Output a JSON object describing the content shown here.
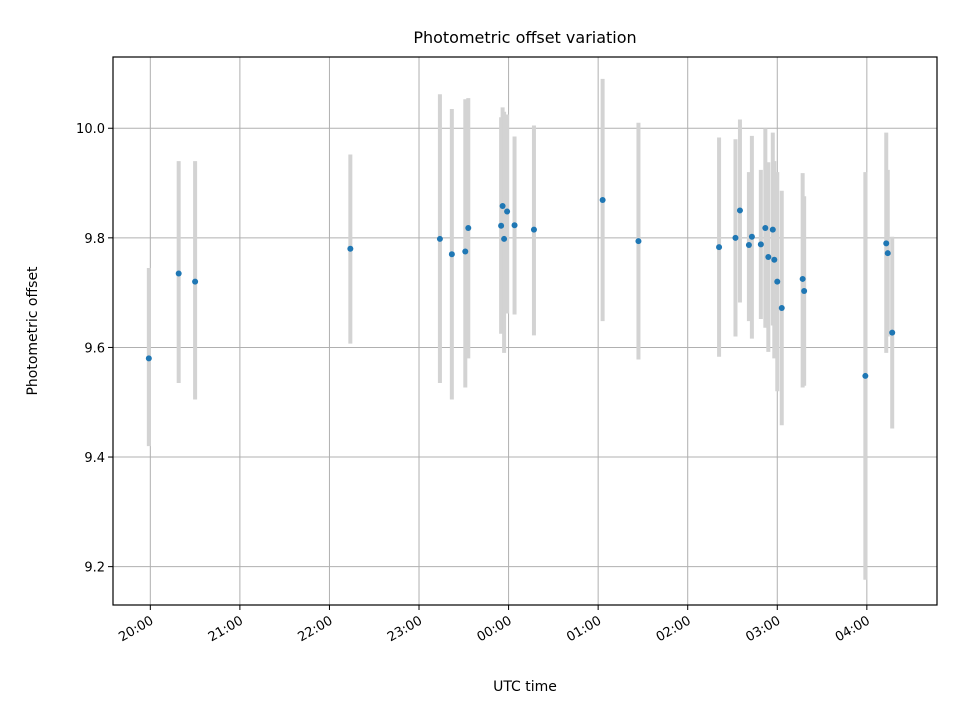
{
  "chart_data": {
    "type": "scatter",
    "title": "Photometric offset variation",
    "xlabel": "UTC time",
    "ylabel": "Photometric offset",
    "x_axis": "time",
    "x_range": [
      "19:35",
      "04:47"
    ],
    "ylim": [
      9.13,
      10.13
    ],
    "x_ticks": [
      "20:00",
      "21:00",
      "22:00",
      "23:00",
      "00:00",
      "01:00",
      "02:00",
      "03:00",
      "04:00"
    ],
    "y_ticks": [
      9.2,
      9.4,
      9.6,
      9.8,
      10.0
    ],
    "grid": true,
    "point_color": "#1f77b4",
    "errorbar_color": "#d3d3d3",
    "points": [
      {
        "x": "19:59",
        "y": 9.58,
        "lo": 9.42,
        "hi": 9.745
      },
      {
        "x": "20:19",
        "y": 9.735,
        "lo": 9.535,
        "hi": 9.94
      },
      {
        "x": "20:30",
        "y": 9.72,
        "lo": 9.505,
        "hi": 9.94
      },
      {
        "x": "22:14",
        "y": 9.78,
        "lo": 9.607,
        "hi": 9.952
      },
      {
        "x": "23:14",
        "y": 9.798,
        "lo": 9.535,
        "hi": 10.062
      },
      {
        "x": "23:22",
        "y": 9.77,
        "lo": 9.505,
        "hi": 10.035
      },
      {
        "x": "23:31",
        "y": 9.775,
        "lo": 9.527,
        "hi": 10.053
      },
      {
        "x": "23:33",
        "y": 9.818,
        "lo": 9.58,
        "hi": 10.055
      },
      {
        "x": "23:55",
        "y": 9.822,
        "lo": 9.625,
        "hi": 10.02
      },
      {
        "x": "23:56",
        "y": 9.858,
        "lo": 9.668,
        "hi": 10.038
      },
      {
        "x": "23:57",
        "y": 9.798,
        "lo": 9.59,
        "hi": 10.03
      },
      {
        "x": "23:59",
        "y": 9.848,
        "lo": 9.662,
        "hi": 10.025
      },
      {
        "x": "00:04",
        "y": 9.823,
        "lo": 9.66,
        "hi": 9.985
      },
      {
        "x": "00:17",
        "y": 9.815,
        "lo": 9.622,
        "hi": 10.005
      },
      {
        "x": "01:03",
        "y": 9.869,
        "lo": 9.648,
        "hi": 10.09
      },
      {
        "x": "01:27",
        "y": 9.794,
        "lo": 9.578,
        "hi": 10.01
      },
      {
        "x": "02:21",
        "y": 9.783,
        "lo": 9.583,
        "hi": 9.983
      },
      {
        "x": "02:32",
        "y": 9.8,
        "lo": 9.62,
        "hi": 9.98
      },
      {
        "x": "02:35",
        "y": 9.85,
        "lo": 9.682,
        "hi": 10.016
      },
      {
        "x": "02:41",
        "y": 9.787,
        "lo": 9.648,
        "hi": 9.92
      },
      {
        "x": "02:43",
        "y": 9.802,
        "lo": 9.616,
        "hi": 9.986
      },
      {
        "x": "02:49",
        "y": 9.788,
        "lo": 9.652,
        "hi": 9.924
      },
      {
        "x": "02:52",
        "y": 9.818,
        "lo": 9.636,
        "hi": 10.0
      },
      {
        "x": "02:54",
        "y": 9.765,
        "lo": 9.592,
        "hi": 9.938
      },
      {
        "x": "02:57",
        "y": 9.815,
        "lo": 9.64,
        "hi": 9.992
      },
      {
        "x": "02:58",
        "y": 9.76,
        "lo": 9.58,
        "hi": 9.94
      },
      {
        "x": "03:00",
        "y": 9.72,
        "lo": 9.52,
        "hi": 9.92
      },
      {
        "x": "03:03",
        "y": 9.672,
        "lo": 9.458,
        "hi": 9.886
      },
      {
        "x": "03:17",
        "y": 9.725,
        "lo": 9.527,
        "hi": 9.918
      },
      {
        "x": "03:18",
        "y": 9.703,
        "lo": 9.53,
        "hi": 9.876
      },
      {
        "x": "03:59",
        "y": 9.548,
        "lo": 9.176,
        "hi": 9.92
      },
      {
        "x": "04:13",
        "y": 9.79,
        "lo": 9.59,
        "hi": 9.992
      },
      {
        "x": "04:14",
        "y": 9.772,
        "lo": 9.62,
        "hi": 9.924
      },
      {
        "x": "04:17",
        "y": 9.627,
        "lo": 9.452,
        "hi": 9.802
      }
    ]
  }
}
